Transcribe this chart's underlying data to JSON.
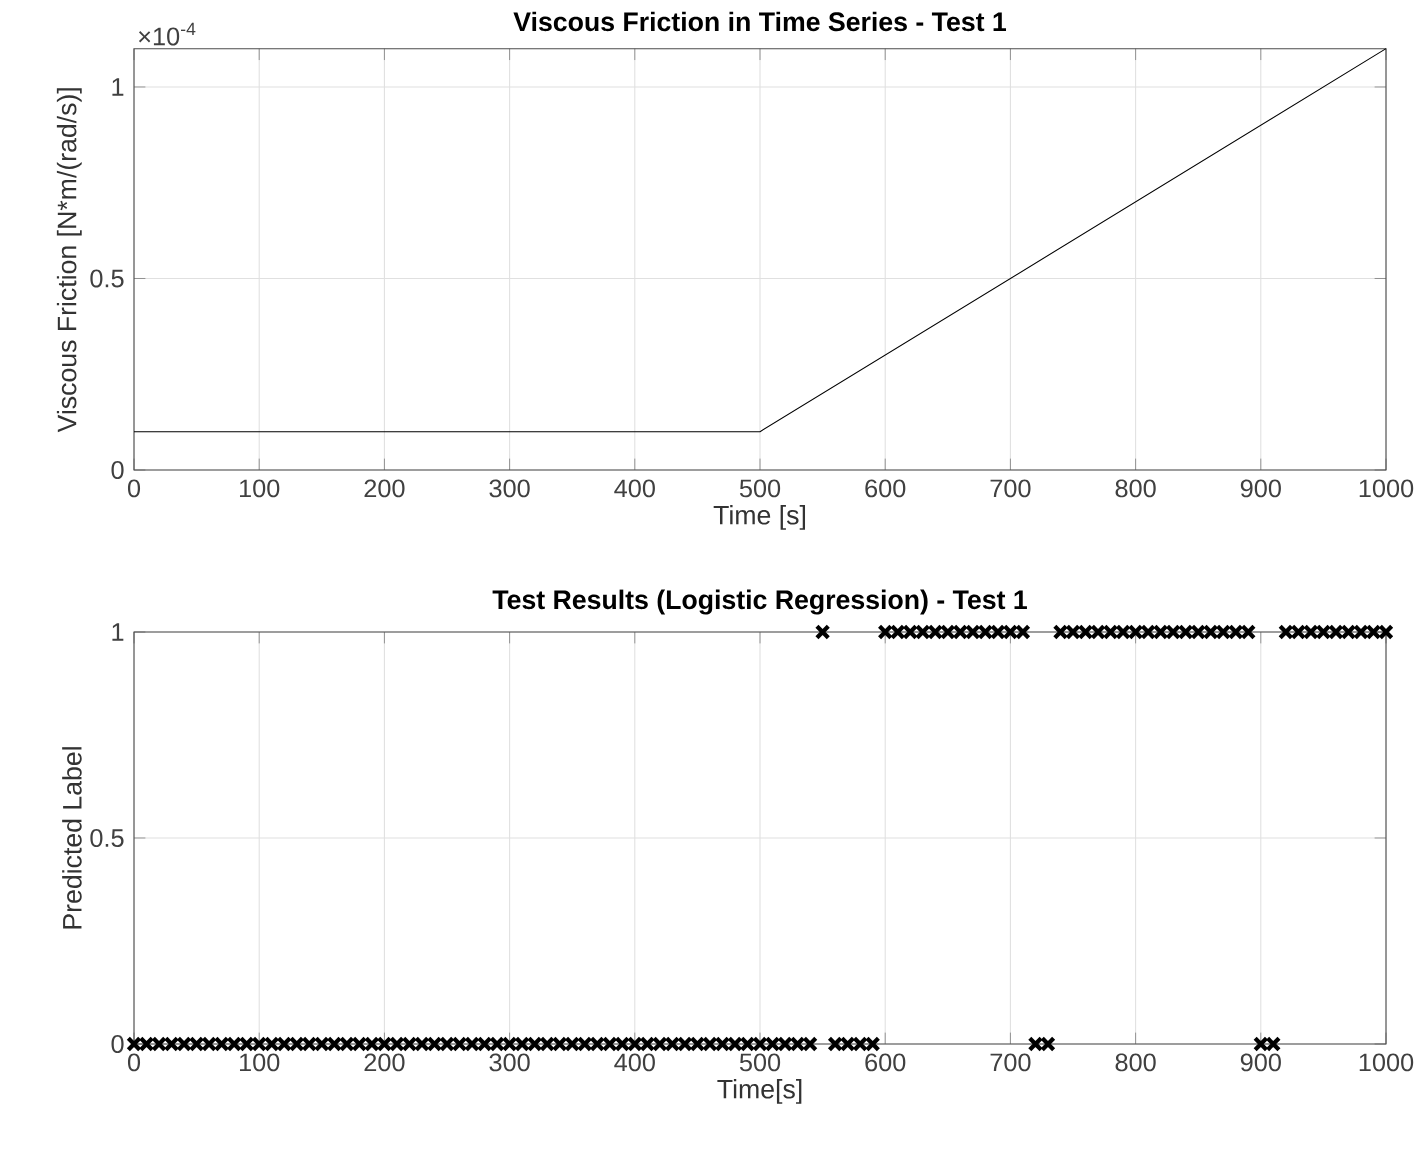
{
  "chart_data": [
    {
      "type": "line",
      "title": "Viscous Friction in Time Series - Test 1",
      "xlabel": "Time [s]",
      "ylabel": "Viscous Friction [N*m/(rad/s)]",
      "annotations": [
        "×10$^{-4}$"
      ],
      "x": [
        0,
        500,
        1000
      ],
      "values": [
        0.1,
        0.1,
        1.1
      ],
      "color": "#000000",
      "xlim": [
        0,
        1000
      ],
      "ylim": [
        0,
        1.1
      ],
      "xticks": [
        0,
        100,
        200,
        300,
        400,
        500,
        600,
        700,
        800,
        900,
        1000
      ],
      "yticks": [
        0,
        0.5,
        1
      ],
      "grid": true
    },
    {
      "type": "scatter",
      "title": "Test Results (Logistic Regression) - Test 1",
      "xlabel": "Time[s]",
      "ylabel": "Predicted Label",
      "marker": "cross",
      "color": "#000000",
      "x": [
        0,
        10,
        20,
        30,
        40,
        50,
        60,
        70,
        80,
        90,
        100,
        110,
        120,
        130,
        140,
        150,
        160,
        170,
        180,
        190,
        200,
        210,
        220,
        230,
        240,
        250,
        260,
        270,
        280,
        290,
        300,
        310,
        320,
        330,
        340,
        350,
        360,
        370,
        380,
        390,
        400,
        410,
        420,
        430,
        440,
        450,
        460,
        470,
        480,
        490,
        500,
        510,
        520,
        530,
        540,
        550,
        560,
        570,
        580,
        590,
        600,
        610,
        620,
        630,
        640,
        650,
        660,
        670,
        680,
        690,
        700,
        710,
        720,
        730,
        740,
        750,
        760,
        770,
        780,
        790,
        800,
        810,
        820,
        830,
        840,
        850,
        860,
        870,
        880,
        890,
        900,
        910,
        920,
        930,
        940,
        950,
        960,
        970,
        980,
        990,
        1000
      ],
      "values": [
        0,
        0,
        0,
        0,
        0,
        0,
        0,
        0,
        0,
        0,
        0,
        0,
        0,
        0,
        0,
        0,
        0,
        0,
        0,
        0,
        0,
        0,
        0,
        0,
        0,
        0,
        0,
        0,
        0,
        0,
        0,
        0,
        0,
        0,
        0,
        0,
        0,
        0,
        0,
        0,
        0,
        0,
        0,
        0,
        0,
        0,
        0,
        0,
        0,
        0,
        0,
        0,
        0,
        0,
        0,
        1,
        0,
        0,
        0,
        0,
        1,
        1,
        1,
        1,
        1,
        1,
        1,
        1,
        1,
        1,
        1,
        1,
        0,
        0,
        1,
        1,
        1,
        1,
        1,
        1,
        1,
        1,
        1,
        1,
        1,
        1,
        1,
        1,
        1,
        1,
        0,
        0,
        1,
        1,
        1,
        1,
        1,
        1,
        1,
        1,
        1
      ],
      "xlim": [
        0,
        1000
      ],
      "ylim": [
        0,
        1
      ],
      "xticks": [
        0,
        100,
        200,
        300,
        400,
        500,
        600,
        700,
        800,
        900,
        1000
      ],
      "yticks": [
        0,
        0.5,
        1
      ],
      "grid": true
    }
  ]
}
